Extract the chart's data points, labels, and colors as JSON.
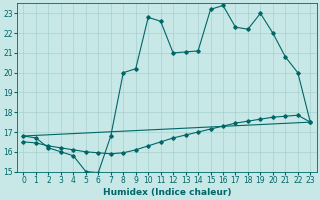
{
  "xlabel": "Humidex (Indice chaleur)",
  "bg_color": "#c8e8e8",
  "grid_color": "#a8d0d0",
  "line_color": "#006666",
  "xlim": [
    -0.5,
    23.5
  ],
  "ylim": [
    15,
    23.5
  ],
  "xticks": [
    0,
    1,
    2,
    3,
    4,
    5,
    6,
    7,
    8,
    9,
    10,
    11,
    12,
    13,
    14,
    15,
    16,
    17,
    18,
    19,
    20,
    21,
    22,
    23
  ],
  "yticks": [
    15,
    16,
    17,
    18,
    19,
    20,
    21,
    22,
    23
  ],
  "line1_x": [
    0,
    1,
    2,
    3,
    4,
    5,
    6,
    7,
    8,
    9,
    10,
    11,
    12,
    13,
    14,
    15,
    16,
    17,
    18,
    19,
    20,
    21,
    22,
    23
  ],
  "line1_y": [
    16.8,
    16.7,
    16.2,
    16.0,
    15.8,
    15.0,
    14.95,
    16.8,
    20.0,
    20.2,
    22.8,
    22.6,
    21.0,
    21.05,
    21.1,
    23.2,
    23.4,
    22.3,
    22.2,
    23.0,
    22.0,
    20.8,
    20.0,
    17.5
  ],
  "line2_x": [
    0,
    1,
    2,
    3,
    4,
    5,
    6,
    7,
    8,
    9,
    10,
    11,
    12,
    13,
    14,
    15,
    16,
    17,
    18,
    19,
    20,
    21,
    22,
    23
  ],
  "line2_y": [
    16.5,
    16.45,
    16.3,
    16.2,
    16.1,
    16.0,
    15.95,
    15.9,
    15.95,
    16.1,
    16.3,
    16.5,
    16.7,
    16.85,
    17.0,
    17.15,
    17.3,
    17.45,
    17.55,
    17.65,
    17.75,
    17.8,
    17.85,
    17.5
  ],
  "line3_x": [
    0,
    23
  ],
  "line3_y": [
    16.8,
    17.5
  ]
}
